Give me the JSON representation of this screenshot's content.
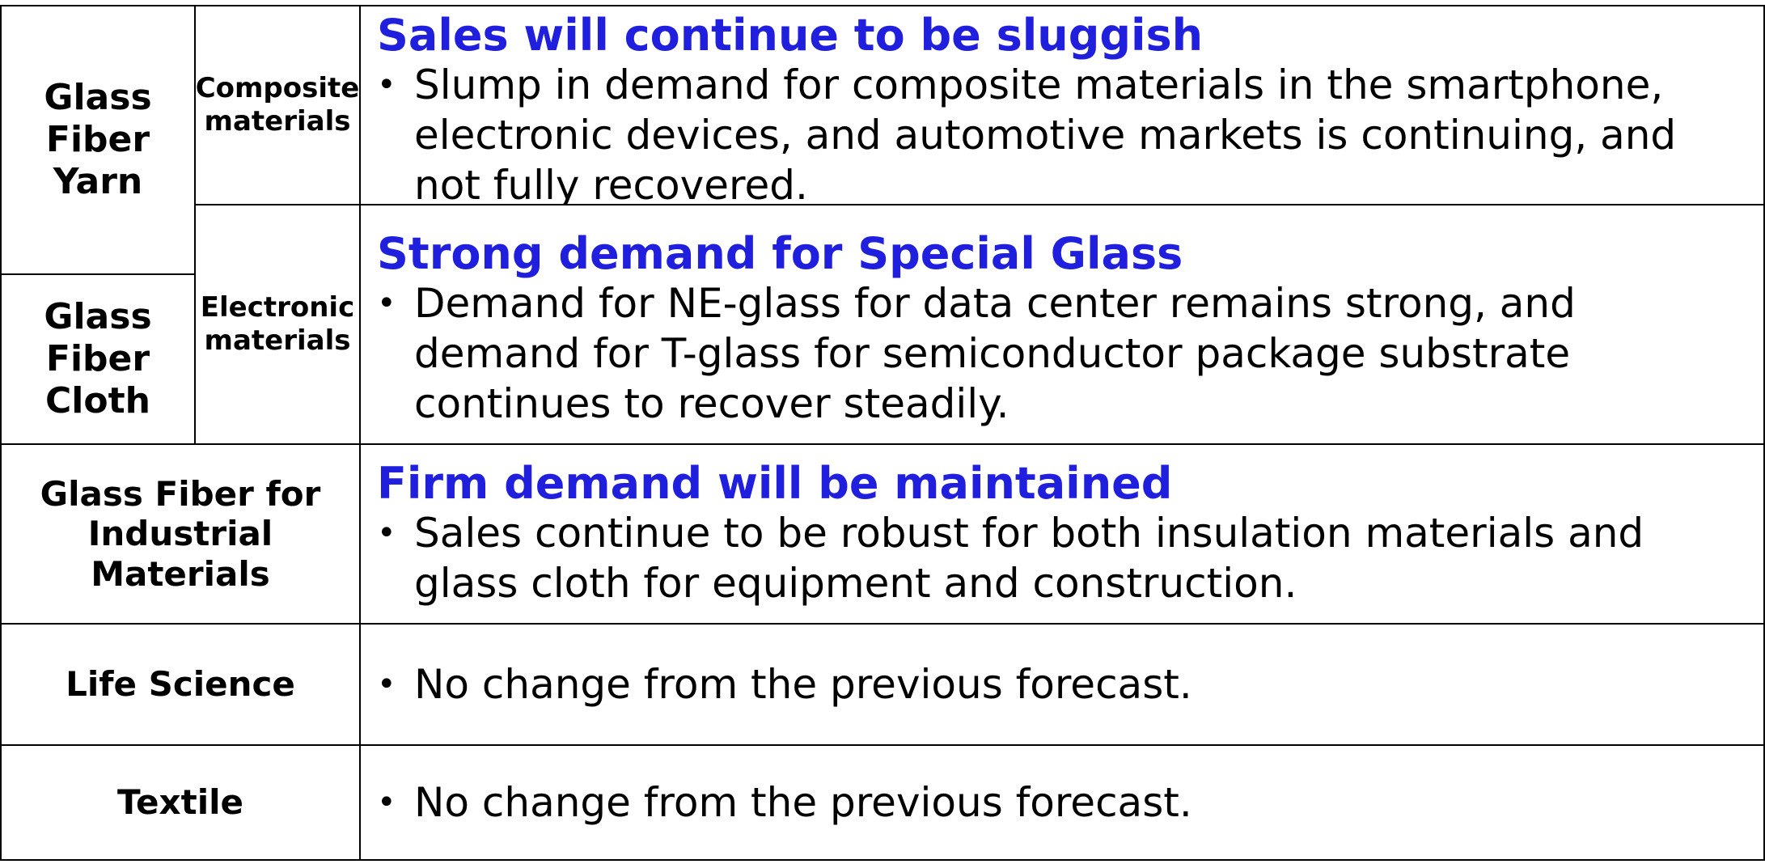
{
  "rows": {
    "composite": {
      "headline": "Sales will continue to be sluggish",
      "text": "Slump in demand for composite materials in the smartphone, electronic devices, and automotive markets is continuing, and not fully recovered."
    },
    "electronic": {
      "headline": "Strong demand for Special Glass",
      "text": "Demand for NE-glass for data center remains strong, and demand for T-glass for semiconductor package substrate continues to recover steadily."
    },
    "industrial": {
      "headline": "Firm demand will be maintained",
      "text": "Sales continue to be robust for both insulation materials and glass cloth for equipment and construction."
    },
    "life_science": {
      "text": "No change from the previous forecast."
    },
    "textile": {
      "text": "No change from the previous forecast."
    }
  },
  "labels": {
    "yarn_line1": "Glass",
    "yarn_line2": "Fiber",
    "yarn_line3": "Yarn",
    "cloth_line1": "Glass",
    "cloth_line2": "Fiber",
    "cloth_line3": "Cloth",
    "composite_line1": "Composite",
    "composite_line2": "materials",
    "electronic_line1": "Electronic",
    "electronic_line2": "materials",
    "industrial_line1": "Glass Fiber for",
    "industrial_line2": "Industrial",
    "industrial_line3": "Materials",
    "life_science": "Life Science",
    "textile": "Textile"
  },
  "bullet_symbol": "•"
}
